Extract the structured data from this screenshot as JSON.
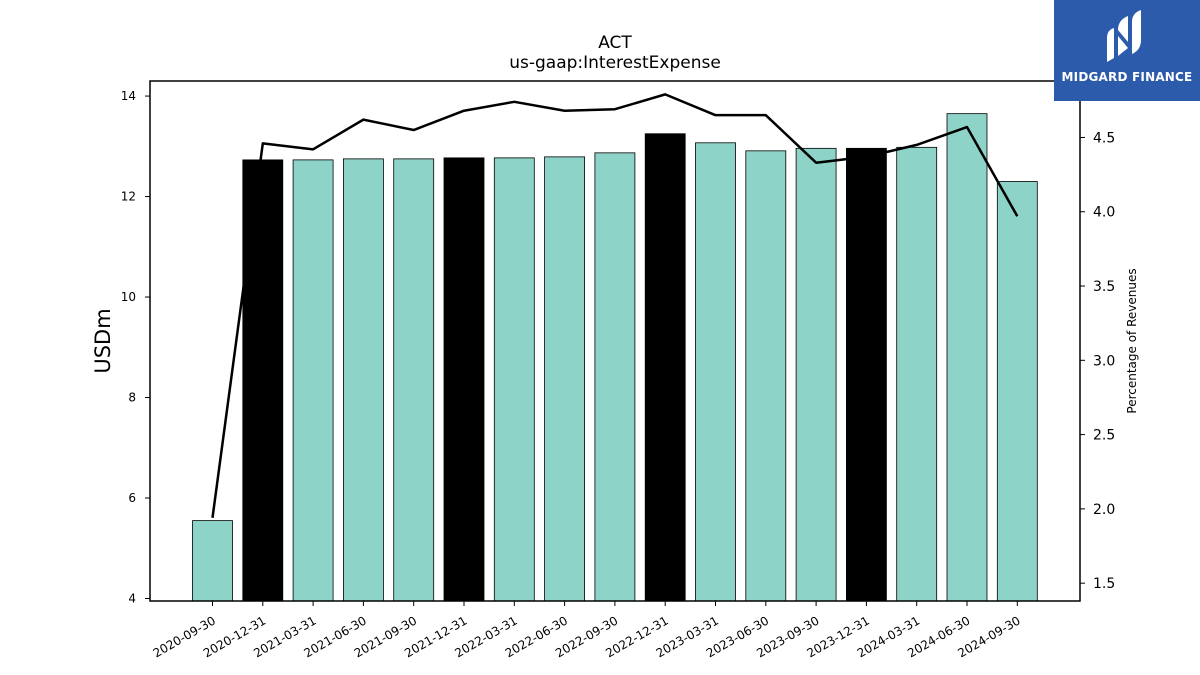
{
  "brand": {
    "name": "MIDGARD FINANCE",
    "logo_icon": "midgard-m-logo-icon",
    "color": "#2d5bab"
  },
  "chart_data": {
    "type": "bar",
    "title": "ACT",
    "subtitle": "us-gaap:InterestExpense",
    "ylabel": "USDm",
    "ylabel_right": "Percentage of Revenues",
    "ylim": [
      3.95,
      14.3
    ],
    "ylim_right": [
      1.38,
      4.88
    ],
    "yticks": [
      4,
      6,
      8,
      10,
      12,
      14
    ],
    "yticks_right": [
      "1.5",
      "2.0",
      "2.5",
      "3.0",
      "3.5",
      "4.0",
      "4.5"
    ],
    "grid": false,
    "colors": {
      "bar": "#8dd3c7",
      "bar_highlight": "#000000",
      "line": "#000000"
    },
    "categories": [
      "2020-09-30",
      "2020-12-31",
      "2021-03-31",
      "2021-06-30",
      "2021-09-30",
      "2021-12-31",
      "2022-03-31",
      "2022-06-30",
      "2022-09-30",
      "2022-12-31",
      "2023-03-31",
      "2023-06-30",
      "2023-09-30",
      "2023-12-31",
      "2024-03-31",
      "2024-06-30",
      "2024-09-30"
    ],
    "series": [
      {
        "type": "bar",
        "axis": "left",
        "values": [
          5.55,
          12.73,
          12.73,
          12.75,
          12.75,
          12.77,
          12.77,
          12.79,
          12.87,
          13.25,
          13.07,
          12.91,
          12.96,
          12.96,
          12.98,
          13.65,
          12.3
        ],
        "highlight": [
          false,
          true,
          false,
          false,
          false,
          true,
          false,
          false,
          false,
          true,
          false,
          false,
          false,
          true,
          false,
          false,
          false
        ]
      },
      {
        "type": "line",
        "axis": "right",
        "values": [
          1.94,
          4.46,
          4.42,
          4.62,
          4.55,
          4.68,
          4.74,
          4.68,
          4.69,
          4.79,
          4.65,
          4.65,
          4.33,
          4.37,
          4.45,
          4.57,
          3.97
        ]
      }
    ]
  }
}
